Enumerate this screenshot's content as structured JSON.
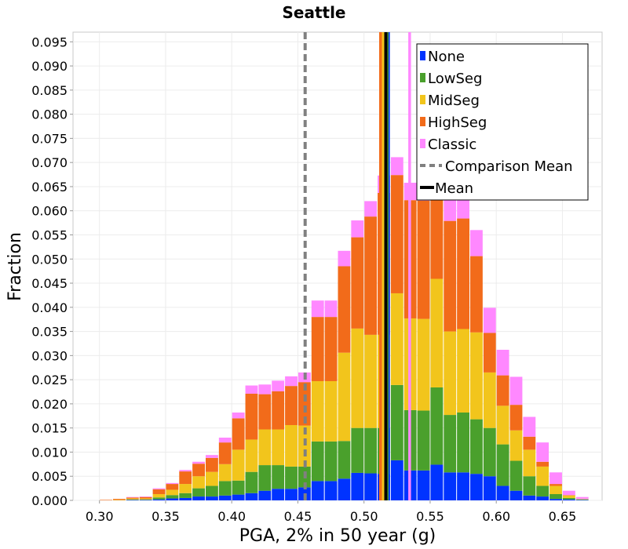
{
  "chart_data": {
    "type": "bar",
    "stacked": true,
    "title": "Seattle",
    "xlabel": "PGA, 2% in 50 year (g)",
    "ylabel": "Fraction",
    "xlim": [
      0.28,
      0.68
    ],
    "ylim": [
      0.0,
      0.097
    ],
    "bin_width": 0.01,
    "grid": true,
    "legend_position": "top-right",
    "xticks": [
      0.3,
      0.35,
      0.4,
      0.45,
      0.5,
      0.55,
      0.6,
      0.65
    ],
    "xtick_labels": [
      "0.30",
      "0.35",
      "0.40",
      "0.45",
      "0.50",
      "0.55",
      "0.60",
      "0.65"
    ],
    "yticks": [
      0.0,
      0.005,
      0.01,
      0.015,
      0.02,
      0.025,
      0.03,
      0.035,
      0.04,
      0.045,
      0.05,
      0.055,
      0.06,
      0.065,
      0.07,
      0.075,
      0.08,
      0.085,
      0.09,
      0.095
    ],
    "ytick_labels": [
      "0.000",
      "0.005",
      "0.010",
      "0.015",
      "0.020",
      "0.025",
      "0.030",
      "0.035",
      "0.040",
      "0.045",
      "0.050",
      "0.055",
      "0.060",
      "0.065",
      "0.070",
      "0.075",
      "0.080",
      "0.085",
      "0.090",
      "0.095"
    ],
    "bin_centers": [
      0.305,
      0.315,
      0.325,
      0.335,
      0.345,
      0.355,
      0.365,
      0.375,
      0.385,
      0.395,
      0.405,
      0.415,
      0.425,
      0.435,
      0.445,
      0.455,
      0.465,
      0.475,
      0.485,
      0.495,
      0.505,
      0.515,
      0.525,
      0.535,
      0.545,
      0.555,
      0.565,
      0.575,
      0.585,
      0.595,
      0.605,
      0.615,
      0.625,
      0.635,
      0.645,
      0.655,
      0.665
    ],
    "series": [
      {
        "name": "None",
        "color": "#0033ff",
        "values": [
          0.0,
          0.0,
          0.0001,
          0.0001,
          0.0002,
          0.0004,
          0.0005,
          0.0008,
          0.0008,
          0.001,
          0.0012,
          0.0015,
          0.002,
          0.0024,
          0.0024,
          0.0027,
          0.004,
          0.004,
          0.0045,
          0.0057,
          0.0056,
          0.0055,
          0.0083,
          0.0062,
          0.0062,
          0.0074,
          0.0058,
          0.0058,
          0.0055,
          0.005,
          0.003,
          0.002,
          0.001,
          0.0008,
          0.0003,
          0.0002,
          0.0001
        ]
      },
      {
        "name": "LowSeg",
        "color": "#4aa02c",
        "values": [
          0.0,
          0.0,
          0.0001,
          0.0001,
          0.0004,
          0.0007,
          0.001,
          0.0017,
          0.0022,
          0.003,
          0.0029,
          0.0044,
          0.0053,
          0.0049,
          0.0046,
          0.0043,
          0.0082,
          0.0082,
          0.0078,
          0.0093,
          0.0094,
          0.0095,
          0.0156,
          0.0125,
          0.0124,
          0.016,
          0.0119,
          0.0124,
          0.0113,
          0.01,
          0.0086,
          0.0062,
          0.004,
          0.0022,
          0.001,
          0.0003,
          0.0001
        ]
      },
      {
        "name": "MidSeg",
        "color": "#f2c51c",
        "values": [
          0.0,
          0.0001,
          0.0002,
          0.0002,
          0.0007,
          0.0011,
          0.0019,
          0.0025,
          0.0029,
          0.0035,
          0.0064,
          0.0067,
          0.0074,
          0.0074,
          0.0086,
          0.0085,
          0.0125,
          0.0125,
          0.0183,
          0.0206,
          0.0193,
          0.0193,
          0.019,
          0.019,
          0.019,
          0.0225,
          0.0173,
          0.0173,
          0.018,
          0.0115,
          0.008,
          0.0063,
          0.0055,
          0.004,
          0.0017,
          0.0005,
          0.0001
        ]
      },
      {
        "name": "HighSeg",
        "color": "#f26b1a",
        "values": [
          0.0001,
          0.0002,
          0.0002,
          0.0003,
          0.001,
          0.0012,
          0.0026,
          0.0026,
          0.0029,
          0.0045,
          0.0065,
          0.0095,
          0.0073,
          0.0079,
          0.0081,
          0.009,
          0.0133,
          0.0133,
          0.0179,
          0.0189,
          0.0245,
          0.0294,
          0.0245,
          0.0245,
          0.0245,
          0.0227,
          0.0229,
          0.0229,
          0.0158,
          0.0082,
          0.0063,
          0.0053,
          0.0027,
          0.001,
          0.0004,
          0.0001,
          0.0
        ]
      },
      {
        "name": "Classic",
        "color": "#ff88ff",
        "values": [
          0.0,
          0.0,
          0.0001,
          0.0001,
          0.0002,
          0.0002,
          0.0003,
          0.0004,
          0.0006,
          0.001,
          0.0012,
          0.0017,
          0.002,
          0.0022,
          0.002,
          0.002,
          0.0034,
          0.0034,
          0.0032,
          0.0035,
          0.0032,
          0.0036,
          0.0037,
          0.0036,
          0.0039,
          0.0042,
          0.0051,
          0.0051,
          0.0054,
          0.0052,
          0.0053,
          0.0058,
          0.0041,
          0.004,
          0.0024,
          0.0009,
          0.0004
        ]
      }
    ],
    "lines": [
      {
        "name": "Comparison Mean",
        "x": 0.4555,
        "style": "dashed",
        "color": "#808080"
      },
      {
        "name": "Mean",
        "x": 0.5165,
        "style": "solid",
        "color": "#000000"
      }
    ],
    "series_mean_lines": [
      {
        "series": "None",
        "x": 0.5185,
        "color": "#0033ff"
      },
      {
        "series": "LowSeg",
        "x": 0.5175,
        "color": "#4aa02c"
      },
      {
        "series": "MidSeg",
        "x": 0.5145,
        "color": "#f2c51c"
      },
      {
        "series": "HighSeg",
        "x": 0.5125,
        "color": "#f26b1a"
      },
      {
        "series": "Classic",
        "x": 0.5345,
        "color": "#ff88ff"
      }
    ]
  }
}
